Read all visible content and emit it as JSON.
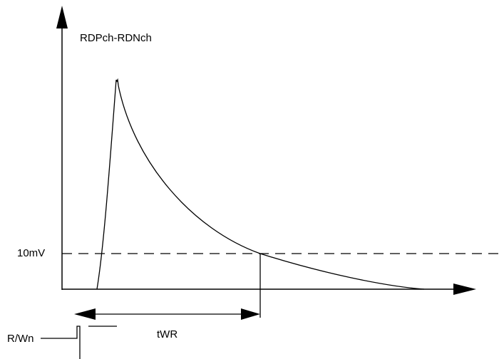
{
  "labels": {
    "y_axis_label": "RDPch-RDNch",
    "threshold_label": "10mV",
    "timing_label": "tWR",
    "signal_label": "R/Wn"
  },
  "colors": {
    "stroke": "#000000",
    "background": "#ffffff"
  }
}
